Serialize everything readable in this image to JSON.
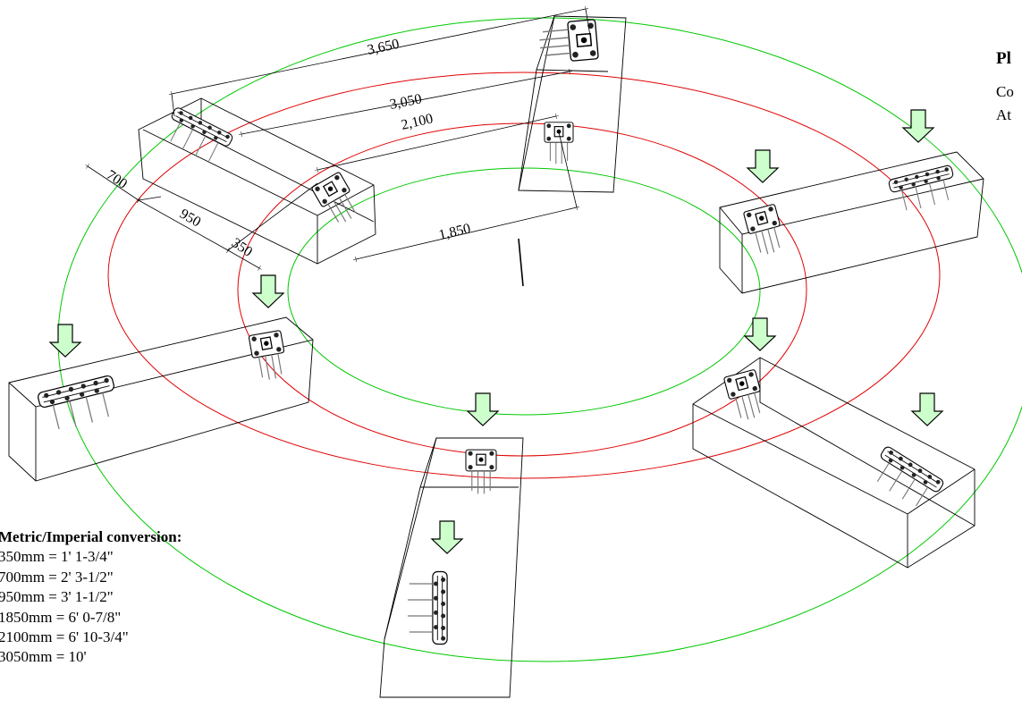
{
  "side_panel": {
    "title": "Pl",
    "line1": "Co",
    "line2": "At"
  },
  "dimensions": {
    "d3650": "3,650",
    "d3050": "3,050",
    "d2100": "2,100",
    "d700": "700",
    "d950": "950",
    "d350": "350",
    "d1850": "1,850"
  },
  "conversion": {
    "title": "Metric/Imperial conversion:",
    "rows": [
      "350mm = 1' 1-3/4\"",
      "700mm = 2' 3-1/2\"",
      "950mm = 3' 1-1/2\"",
      "1850mm = 6' 0-7/8\"",
      "2100mm = 6' 10-3/4\"",
      "3050mm = 10'"
    ]
  },
  "colors": {
    "outer_and_inner_ring": "#00c800",
    "middle_rings": "#e00000",
    "load_arrow_fill": "#ccffcc",
    "load_arrow_stroke": "#000000"
  }
}
